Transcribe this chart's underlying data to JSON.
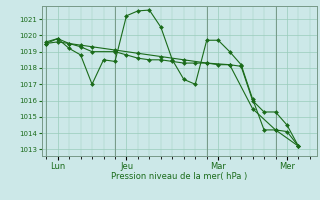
{
  "bg_color": "#cce8e8",
  "grid_color": "#99ccbb",
  "line_color": "#1a6b1a",
  "marker_color": "#1a6b1a",
  "xlabel_text": "Pression niveau de la mer( hPa )",
  "yticks": [
    1013,
    1014,
    1015,
    1016,
    1017,
    1018,
    1019,
    1020,
    1021
  ],
  "ylim": [
    1012.6,
    1021.8
  ],
  "xlim": [
    -0.2,
    11.8
  ],
  "day_labels": [
    "Lun",
    "Jeu",
    "Mar",
    "Mer"
  ],
  "day_positions": [
    0.5,
    3.5,
    7.5,
    10.5
  ],
  "vline_positions": [
    0,
    3,
    7,
    10
  ],
  "series": [
    {
      "x": [
        0,
        0.5,
        1,
        1.5,
        2,
        2.5,
        3,
        3.5,
        4,
        4.5,
        5,
        5.5,
        6,
        6.5,
        7,
        7.5,
        8,
        8.5,
        9,
        9.5,
        10,
        10.5,
        11
      ],
      "y": [
        1019.5,
        1019.8,
        1019.2,
        1018.8,
        1017.0,
        1018.5,
        1018.4,
        1021.2,
        1021.5,
        1021.55,
        1020.5,
        1018.5,
        1017.3,
        1017.0,
        1019.7,
        1019.7,
        1019.0,
        1018.2,
        1016.1,
        1014.2,
        1014.2,
        1014.1,
        1013.2
      ]
    },
    {
      "x": [
        0,
        0.5,
        1,
        1.5,
        2,
        3,
        3.5,
        4,
        4.5,
        5,
        5.5,
        6,
        6.5,
        7,
        7.5,
        8,
        8.5,
        9,
        9.5,
        10,
        10.5,
        11
      ],
      "y": [
        1019.6,
        1019.8,
        1019.5,
        1019.3,
        1019.0,
        1019.0,
        1018.8,
        1018.6,
        1018.5,
        1018.5,
        1018.4,
        1018.3,
        1018.3,
        1018.3,
        1018.2,
        1018.2,
        1018.1,
        1016.0,
        1015.3,
        1015.3,
        1014.5,
        1013.2
      ]
    },
    {
      "x": [
        0,
        0.5,
        1,
        1.5,
        2,
        3,
        4,
        5,
        6,
        7,
        8,
        9,
        10,
        11
      ],
      "y": [
        1019.5,
        1019.6,
        1019.5,
        1019.4,
        1019.3,
        1019.1,
        1018.9,
        1018.7,
        1018.5,
        1018.3,
        1018.2,
        1015.5,
        1014.2,
        1013.2
      ]
    }
  ]
}
